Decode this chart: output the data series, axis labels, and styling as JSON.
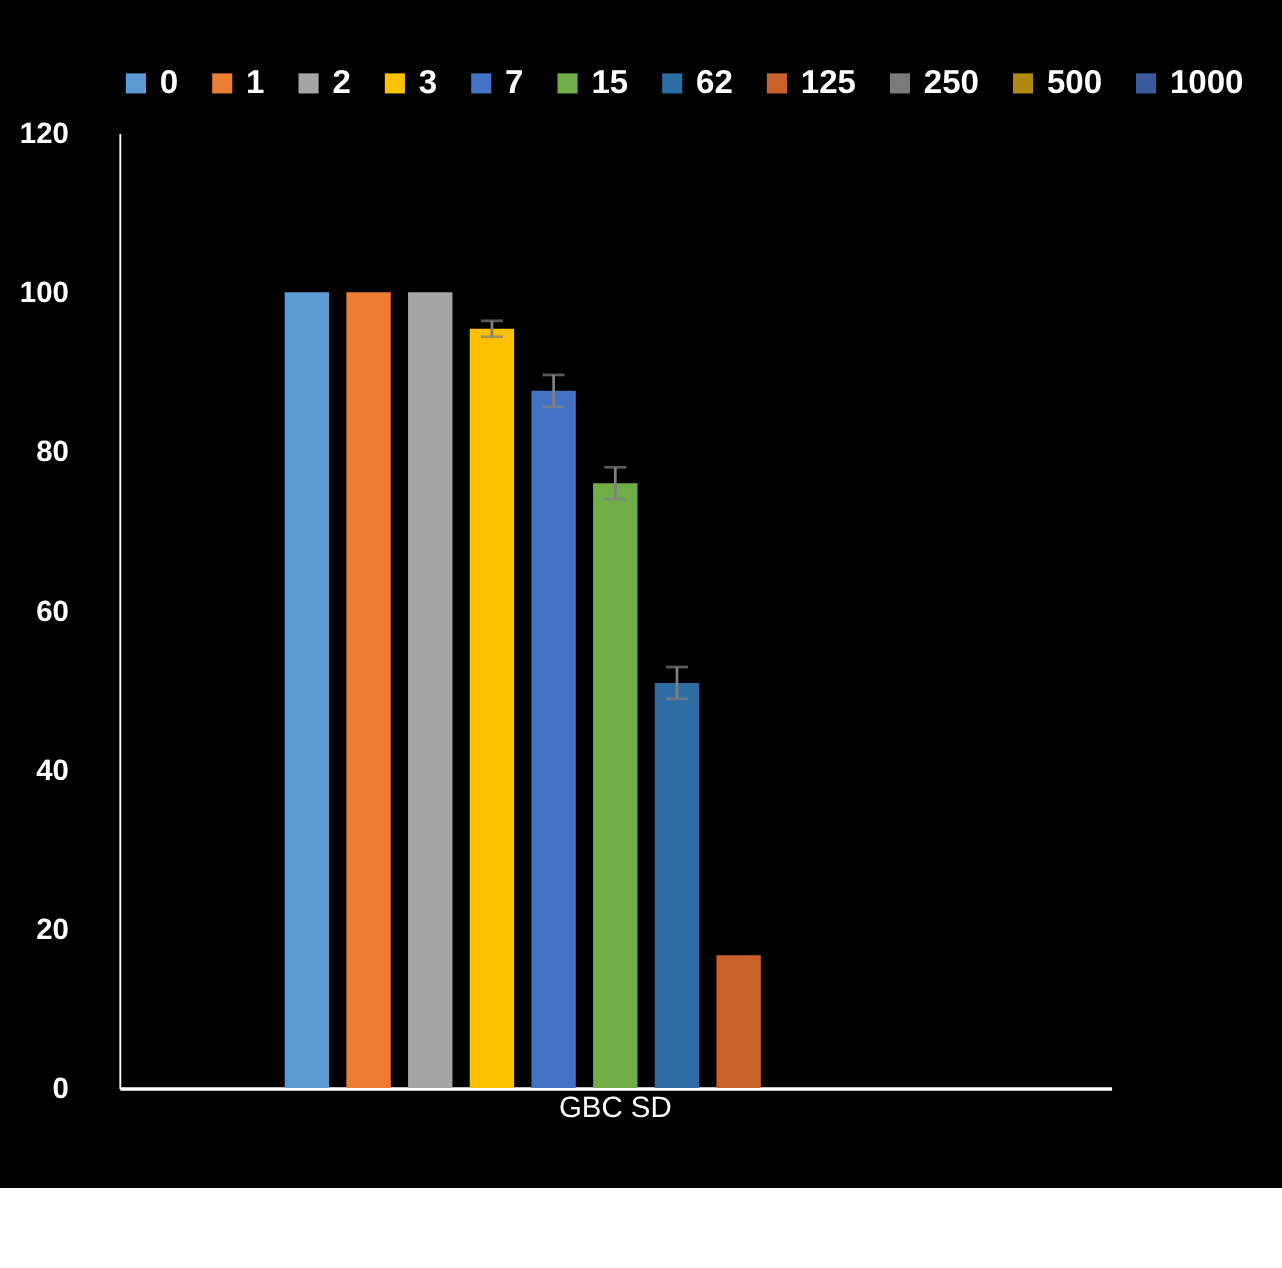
{
  "chart_data": {
    "type": "bar",
    "categories": [
      "GBC SD"
    ],
    "series": [
      {
        "name": "0",
        "color": "#5b9bd5",
        "values": [
          100
        ]
      },
      {
        "name": "1",
        "color": "#ed7d31",
        "values": [
          100
        ]
      },
      {
        "name": "2",
        "color": "#a5a5a5",
        "values": [
          100
        ]
      },
      {
        "name": "3",
        "color": "#ffc000",
        "values": [
          95.4
        ],
        "errors": [
          1
        ]
      },
      {
        "name": "7",
        "color": "#4472c4",
        "values": [
          87.6
        ],
        "errors": [
          2
        ]
      },
      {
        "name": "15",
        "color": "#70ad47",
        "values": [
          76
        ],
        "errors": [
          2
        ]
      },
      {
        "name": "62",
        "color": "#2e6ca4",
        "values": [
          50.9
        ],
        "errors": [
          2
        ]
      },
      {
        "name": "125",
        "color": "#c8622a",
        "values": [
          16.7
        ]
      },
      {
        "name": "250",
        "color": "#7a7a7a",
        "values": [
          0
        ]
      },
      {
        "name": "500",
        "color": "#b08a10",
        "values": [
          0
        ]
      },
      {
        "name": "1000",
        "color": "#3a5a9a",
        "values": [
          0
        ]
      }
    ],
    "ylim": [
      0,
      120
    ],
    "yticks": [
      0,
      20,
      40,
      60,
      80,
      100,
      120
    ],
    "grid": false,
    "legend": "top"
  }
}
